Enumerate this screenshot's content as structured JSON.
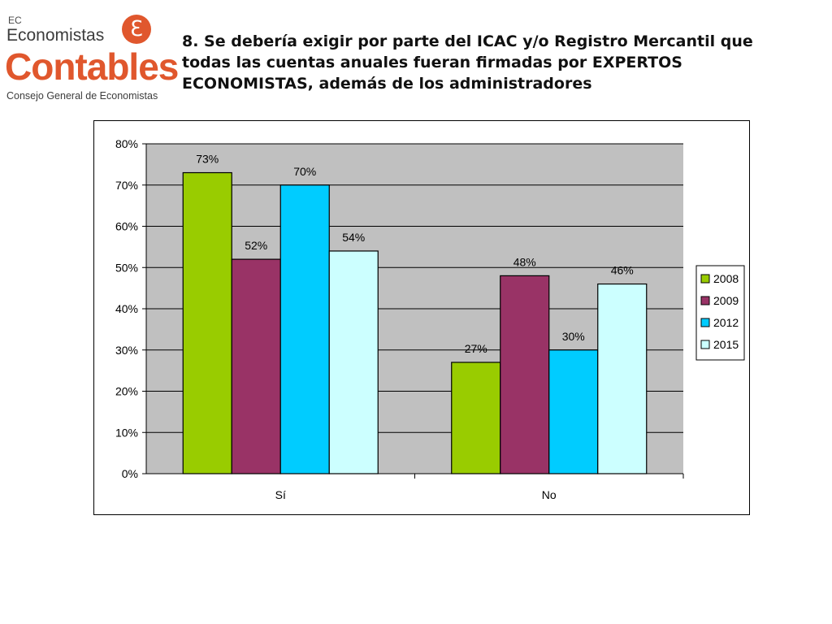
{
  "logo": {
    "top_text": "EC",
    "line1": "Economistas",
    "line2": "Contables",
    "line3": "Consejo General de Economistas",
    "mark_glyph": "ℇ",
    "brand_color": "#e0572d"
  },
  "title": "8. Se debería exigir por parte del ICAC y/o Registro Mercantil que todas las cuentas anuales fueran firmadas por EXPERTOS ECONOMISTAS, además de los administradores",
  "chart_data": {
    "type": "bar",
    "categories": [
      "Sí",
      "No"
    ],
    "series": [
      {
        "name": "2008",
        "values": [
          73,
          27
        ],
        "labels": [
          "73%",
          "27%"
        ],
        "color": "#99cc00"
      },
      {
        "name": "2009",
        "values": [
          52,
          48
        ],
        "labels": [
          "52%",
          "48%"
        ],
        "color": "#993366"
      },
      {
        "name": "2012",
        "values": [
          70,
          30
        ],
        "labels": [
          "70%",
          "30%"
        ],
        "color": "#00ccff"
      },
      {
        "name": "2015",
        "values": [
          54,
          46
        ],
        "labels": [
          "54%",
          "46%"
        ],
        "color": "#ccffff"
      }
    ],
    "y_ticks": [
      "0%",
      "10%",
      "20%",
      "30%",
      "40%",
      "50%",
      "60%",
      "70%",
      "80%"
    ],
    "ylim": [
      0,
      80
    ],
    "grid": true,
    "plot_background": "#c0c0c0",
    "legend_position": "right"
  }
}
